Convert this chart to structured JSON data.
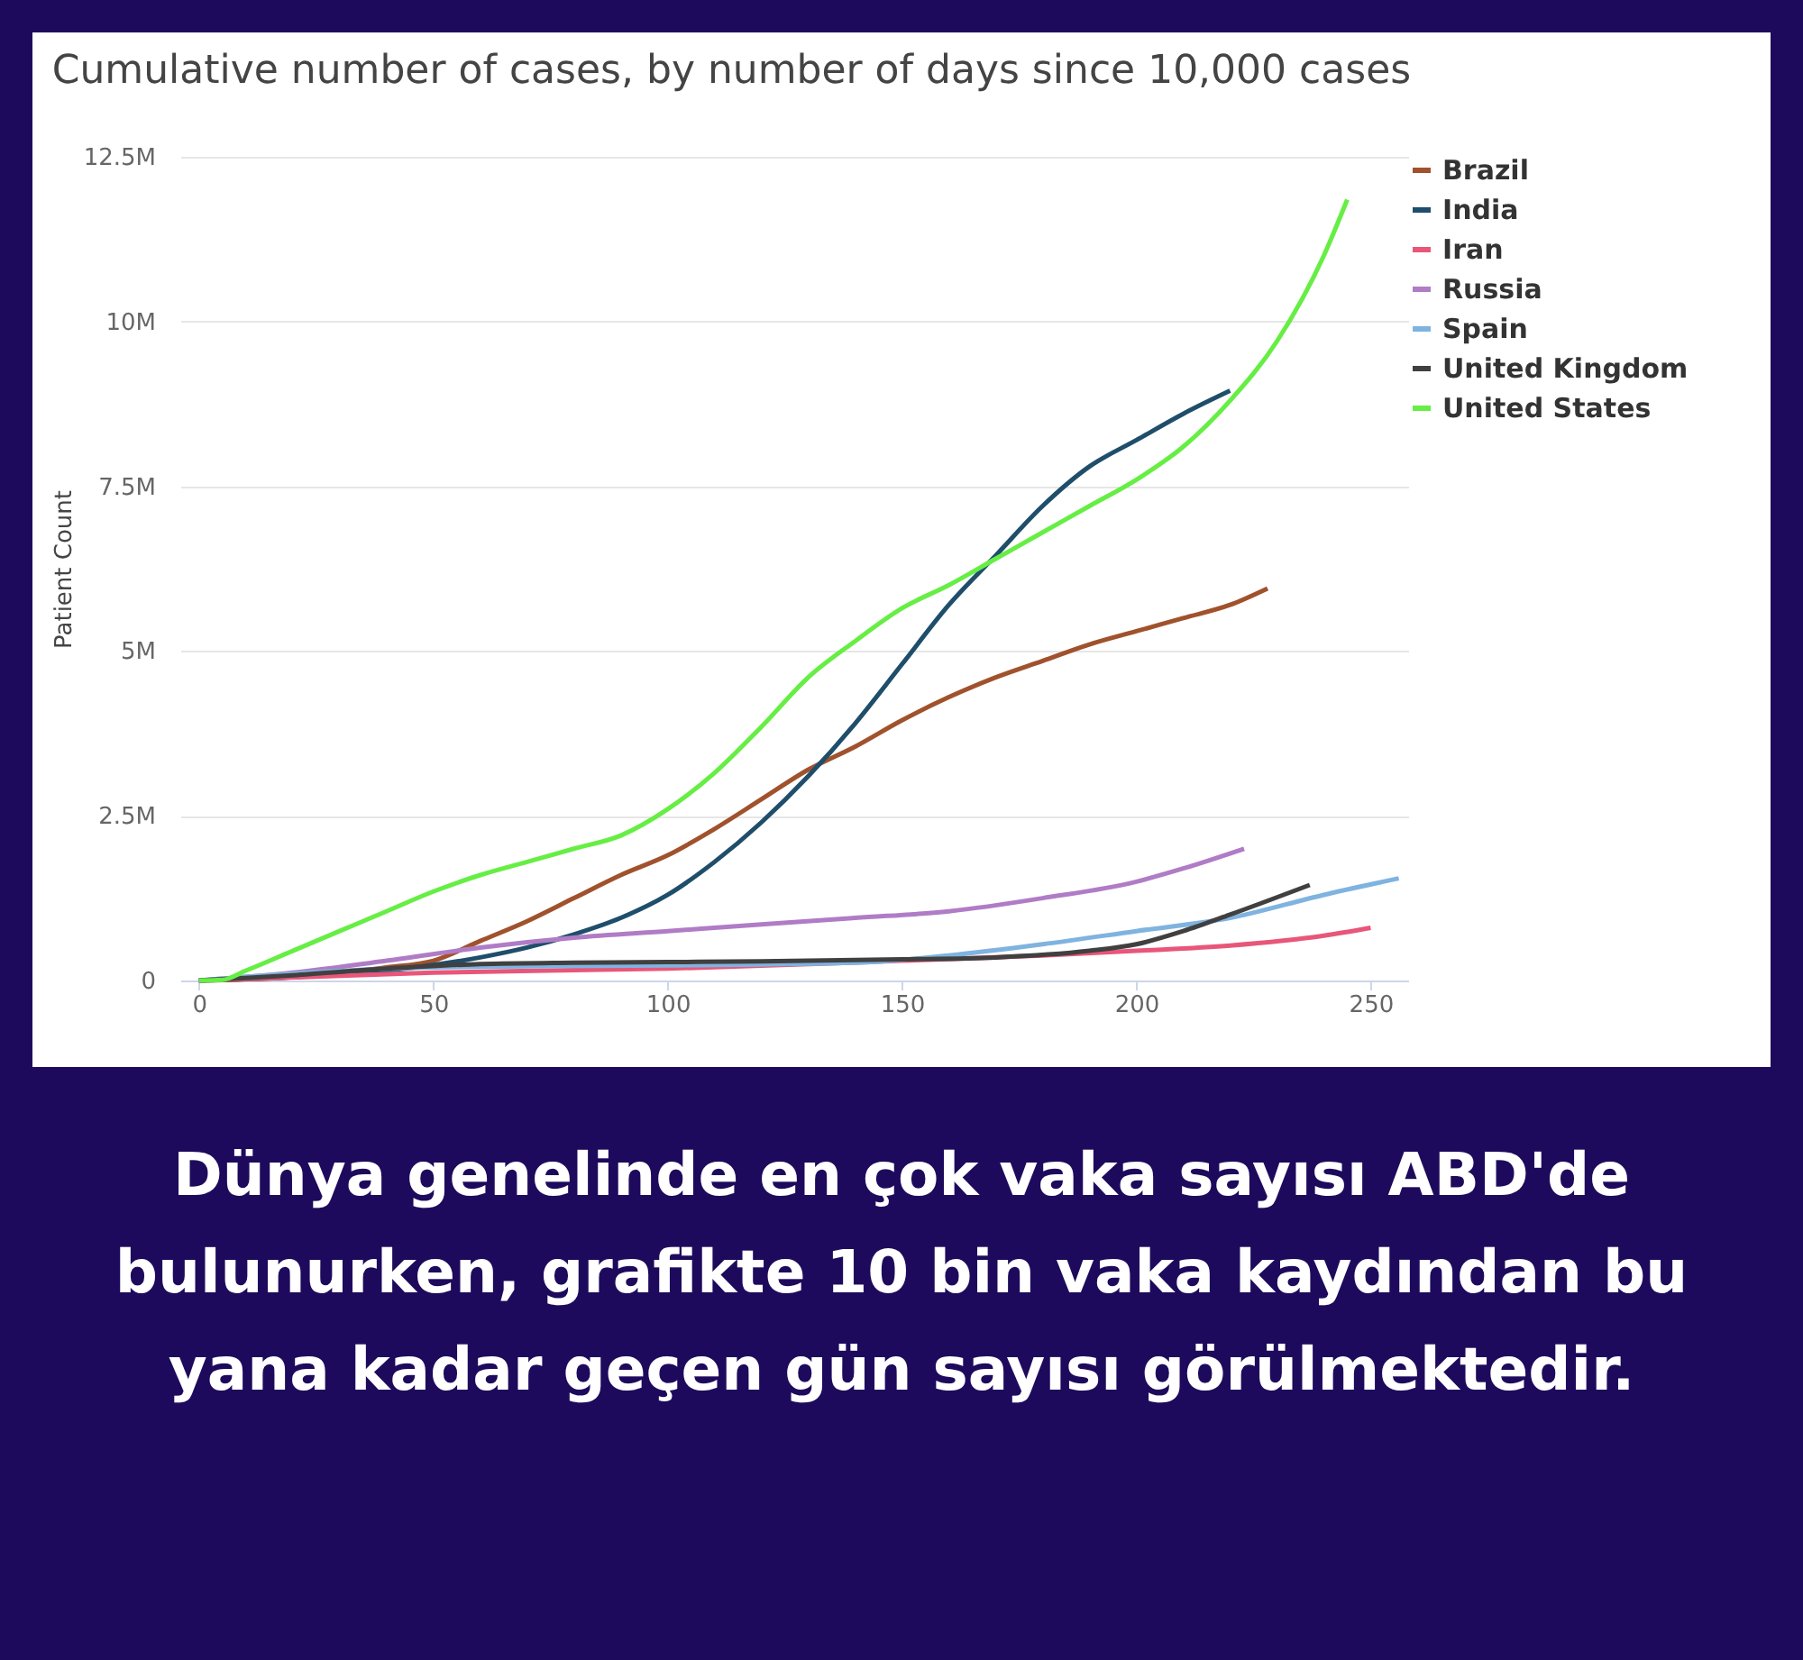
{
  "chart_data": {
    "type": "line",
    "title": "Cumulative number of cases, by number of days since 10,000 cases",
    "ylabel": "Patient Count",
    "xlim": [
      -4,
      258
    ],
    "xticks": [
      0,
      50,
      100,
      150,
      200,
      250
    ],
    "ylim": [
      0,
      12.5
    ],
    "yticks": [
      0,
      {
        "value": 2.5,
        "label": "2.5M"
      },
      {
        "value": 5,
        "label": "5M"
      },
      {
        "value": 7.5,
        "label": "7.5M"
      },
      {
        "value": 10,
        "label": "10M"
      },
      {
        "value": 12.5,
        "label": "12.5M"
      }
    ],
    "grid": "y",
    "legend": "right",
    "line_style": "solid",
    "annotations": [
      "Dünya genelinde en çok vaka sayısı ABD'de bulunurken, grafikte 10 bin vaka kaydından bu yana kadar geçen gün sayısı görülmektedir."
    ],
    "series": [
      {
        "name": "Brazil",
        "color": "#a0522d",
        "x": [
          0,
          20,
          40,
          50,
          60,
          70,
          80,
          90,
          100,
          110,
          120,
          130,
          140,
          150,
          160,
          170,
          180,
          190,
          200,
          210,
          220,
          228
        ],
        "values": [
          0,
          0.05,
          0.2,
          0.3,
          0.6,
          0.9,
          1.25,
          1.6,
          1.9,
          2.3,
          2.75,
          3.2,
          3.55,
          3.95,
          4.3,
          4.6,
          4.85,
          5.1,
          5.3,
          5.5,
          5.7,
          5.95
        ]
      },
      {
        "name": "India",
        "color": "#1f4e6b",
        "x": [
          0,
          20,
          40,
          60,
          70,
          80,
          90,
          100,
          110,
          120,
          130,
          140,
          150,
          160,
          170,
          180,
          190,
          200,
          210,
          220
        ],
        "values": [
          0,
          0.05,
          0.15,
          0.35,
          0.5,
          0.7,
          0.95,
          1.3,
          1.8,
          2.4,
          3.1,
          3.9,
          4.8,
          5.7,
          6.45,
          7.2,
          7.8,
          8.2,
          8.6,
          8.95
        ]
      },
      {
        "name": "Iran",
        "color": "#e8567a",
        "x": [
          0,
          50,
          100,
          150,
          180,
          200,
          220,
          240,
          250
        ],
        "values": [
          0,
          0.12,
          0.18,
          0.3,
          0.38,
          0.45,
          0.53,
          0.68,
          0.8
        ]
      },
      {
        "name": "Russia",
        "color": "#b07cc6",
        "x": [
          0,
          20,
          40,
          60,
          80,
          100,
          120,
          140,
          160,
          180,
          200,
          210,
          223
        ],
        "values": [
          0,
          0.12,
          0.3,
          0.5,
          0.65,
          0.75,
          0.85,
          0.95,
          1.05,
          1.25,
          1.5,
          1.7,
          2.0
        ]
      },
      {
        "name": "Spain",
        "color": "#7fb3e0",
        "x": [
          0,
          50,
          100,
          140,
          160,
          180,
          200,
          220,
          240,
          256
        ],
        "values": [
          0,
          0.2,
          0.23,
          0.27,
          0.38,
          0.55,
          0.75,
          0.95,
          1.3,
          1.55
        ]
      },
      {
        "name": "United Kingdom",
        "color": "#404040",
        "x": [
          0,
          20,
          40,
          60,
          80,
          100,
          120,
          150,
          170,
          190,
          200,
          210,
          220,
          237
        ],
        "values": [
          0,
          0.08,
          0.18,
          0.25,
          0.27,
          0.28,
          0.29,
          0.32,
          0.35,
          0.45,
          0.55,
          0.75,
          1.0,
          1.45
        ]
      },
      {
        "name": "United States",
        "color": "#66ee44",
        "x": [
          0,
          5,
          10,
          20,
          30,
          40,
          50,
          60,
          70,
          80,
          90,
          100,
          110,
          120,
          130,
          140,
          150,
          160,
          170,
          180,
          190,
          200,
          210,
          220,
          230,
          240,
          245
        ],
        "values": [
          0,
          0.01,
          0.15,
          0.45,
          0.75,
          1.05,
          1.35,
          1.6,
          1.8,
          2.0,
          2.2,
          2.6,
          3.15,
          3.85,
          4.6,
          5.15,
          5.65,
          6.0,
          6.4,
          6.8,
          7.2,
          7.6,
          8.1,
          8.8,
          9.7,
          11.0,
          11.85
        ]
      }
    ]
  }
}
